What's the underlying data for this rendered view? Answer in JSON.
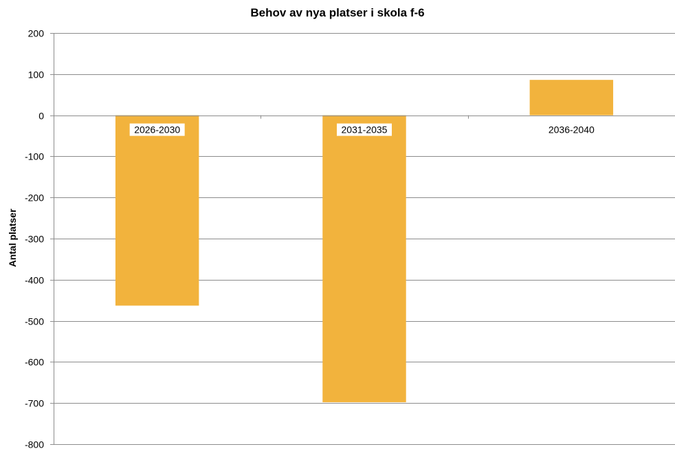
{
  "chart_data": {
    "type": "bar",
    "title": "Behov av nya platser i skola f-6",
    "xlabel": "",
    "ylabel": "Antal platser",
    "categories": [
      "2026-2030",
      "2031-2035",
      "2036-2040"
    ],
    "values": [
      -463,
      -698,
      86
    ],
    "ylim": [
      -800,
      200
    ],
    "yticks": [
      200,
      100,
      0,
      -100,
      -200,
      -300,
      -400,
      -500,
      -600,
      -700,
      -800
    ],
    "grid": true,
    "legend": "none",
    "bar_color": "#F2B33D",
    "grid_color": "#8C8C8C"
  }
}
